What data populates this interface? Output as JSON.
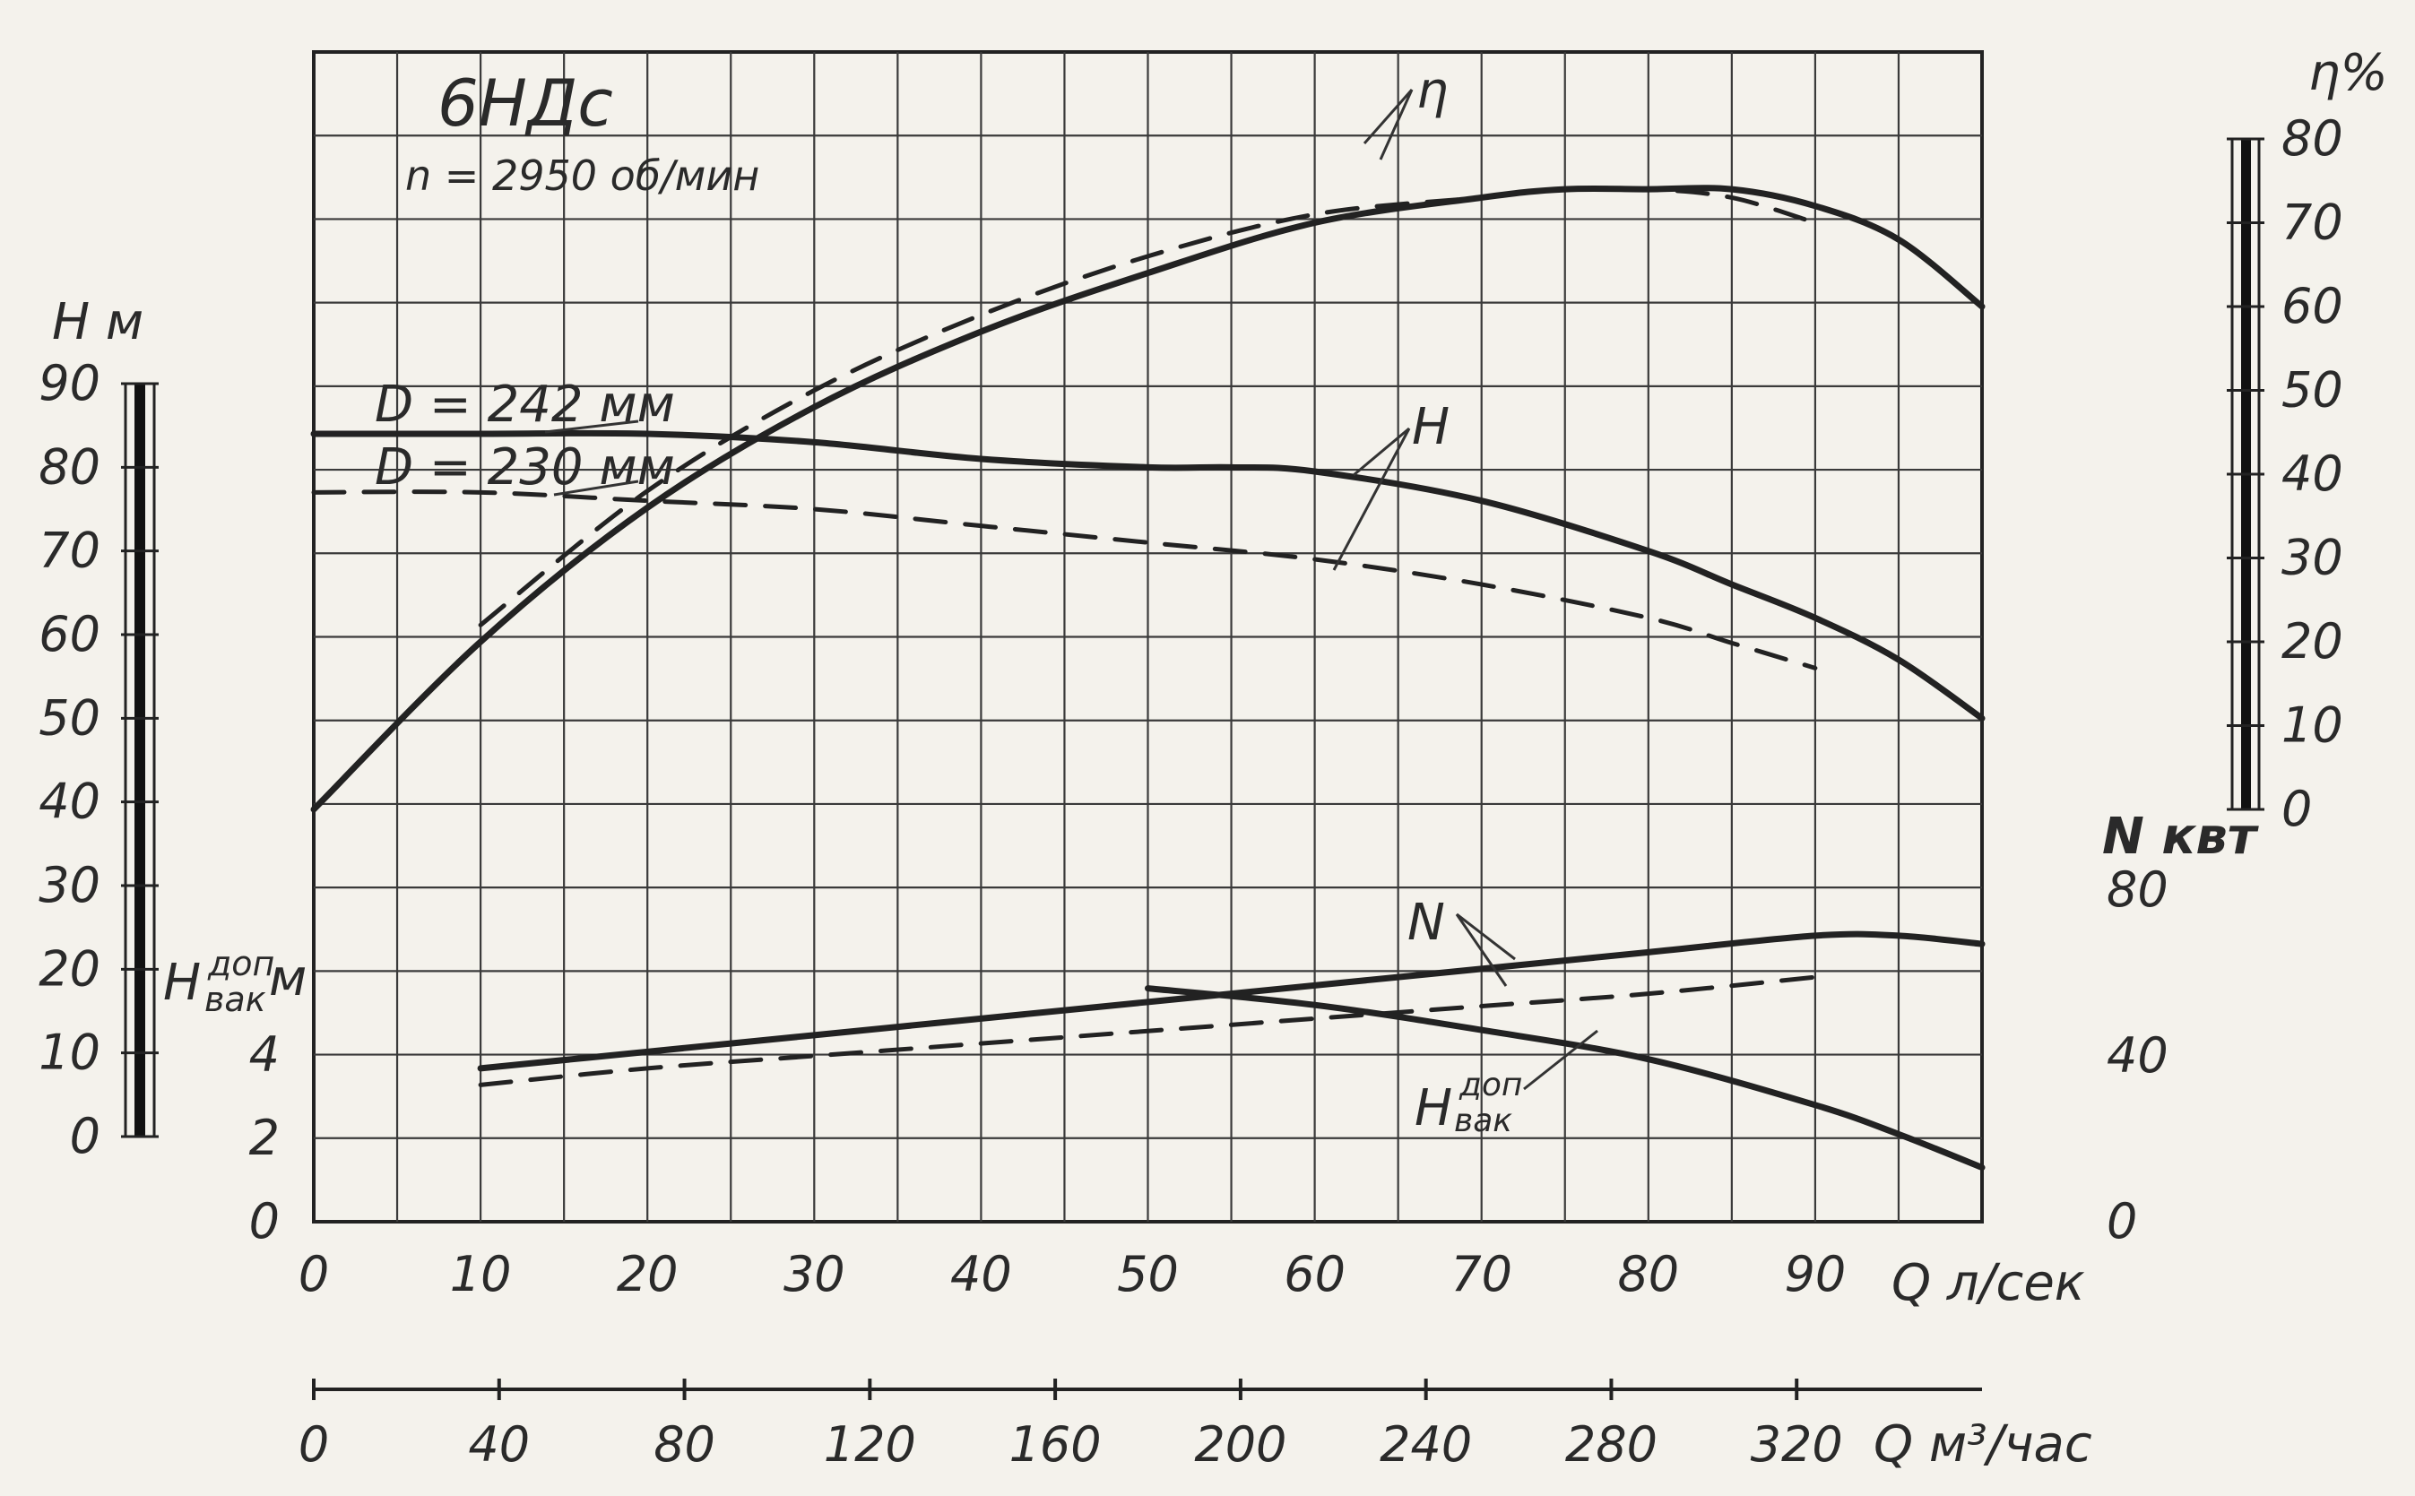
{
  "chart_data": {
    "type": "line",
    "title": "6НДс",
    "subtitle": "n = 2950 об/мин",
    "x_axis": {
      "label": "Q л/сек",
      "range": [
        0,
        100
      ],
      "ticks": [
        "0",
        "10",
        "20",
        "30",
        "40",
        "50",
        "60",
        "70",
        "80",
        "90"
      ]
    },
    "x2_axis": {
      "label": "Q м³/час",
      "range": [
        0,
        360
      ],
      "ticks": [
        "0",
        "40",
        "80",
        "120",
        "160",
        "200",
        "240",
        "280",
        "320"
      ]
    },
    "y_axes": {
      "H": {
        "label": "H м",
        "range": [
          0,
          90
        ],
        "ticks": [
          "0",
          "10",
          "20",
          "30",
          "40",
          "50",
          "60",
          "70",
          "80",
          "90"
        ]
      },
      "Hvac": {
        "label_main": "H",
        "label_sup": "доп",
        "label_sub": "вак",
        "label_unit": "м",
        "range": [
          0,
          10
        ],
        "ticks": [
          "0",
          "2",
          "4"
        ]
      },
      "eta": {
        "label": "η%",
        "range": [
          0,
          80
        ],
        "ticks": [
          "0",
          "10",
          "20",
          "30",
          "40",
          "50",
          "60",
          "70",
          "80"
        ]
      },
      "N": {
        "label": "N квт",
        "range": [
          0,
          100
        ],
        "ticks": [
          "0",
          "40",
          "80"
        ]
      }
    },
    "annotations": {
      "D1": "D = 242 мм",
      "D2": "D = 230 мм",
      "curve_H": "H",
      "curve_eta": "η",
      "curve_N": "N",
      "curve_Hvac_main": "H",
      "curve_Hvac_sup": "доп",
      "curve_Hvac_sub": "вак"
    },
    "series": [
      {
        "key": "H_242",
        "axis": "H",
        "style": "solid",
        "x": [
          0,
          10,
          20,
          30,
          40,
          50,
          55,
          60,
          70,
          80,
          85,
          90,
          95,
          100
        ],
        "y": [
          84,
          84,
          84,
          83,
          81,
          80,
          80,
          79.5,
          76,
          70,
          66,
          62,
          57,
          50
        ]
      },
      {
        "key": "H_230",
        "axis": "H",
        "style": "dashed",
        "x": [
          0,
          10,
          20,
          30,
          40,
          50,
          60,
          70,
          80,
          85,
          90
        ],
        "y": [
          77,
          77,
          76,
          75,
          73,
          71,
          69,
          66,
          62,
          59,
          56
        ]
      },
      {
        "key": "eta_242",
        "axis": "eta",
        "style": "solid",
        "x": [
          0,
          10,
          20,
          30,
          40,
          50,
          60,
          70,
          75,
          80,
          85,
          90,
          95,
          100
        ],
        "y": [
          0,
          20,
          36,
          48,
          57,
          64,
          70,
          73,
          74,
          74,
          74,
          72,
          68,
          60
        ]
      },
      {
        "key": "eta_230",
        "axis": "eta",
        "style": "dashed",
        "x": [
          10,
          20,
          30,
          40,
          50,
          60,
          70,
          75,
          80,
          85,
          90
        ],
        "y": [
          22,
          38,
          50,
          59,
          66,
          71,
          73,
          74,
          74,
          73,
          70
        ]
      },
      {
        "key": "N_242",
        "axis": "N",
        "style": "solid",
        "x": [
          10,
          20,
          30,
          40,
          50,
          60,
          70,
          80,
          90,
          95,
          100
        ],
        "y": [
          37,
          41,
          45,
          49,
          53,
          57,
          61,
          65,
          69,
          69,
          67
        ]
      },
      {
        "key": "N_230",
        "axis": "N",
        "style": "dashed",
        "x": [
          10,
          20,
          30,
          40,
          50,
          60,
          70,
          80,
          90
        ],
        "y": [
          33,
          37,
          40,
          43,
          46,
          49,
          52,
          55,
          59
        ]
      },
      {
        "key": "Hvac",
        "axis": "Hvac",
        "style": "solid",
        "x": [
          50,
          60,
          70,
          80,
          90,
          95,
          100
        ],
        "y": [
          5.6,
          5.2,
          4.6,
          3.9,
          2.8,
          2.1,
          1.3
        ]
      }
    ]
  }
}
